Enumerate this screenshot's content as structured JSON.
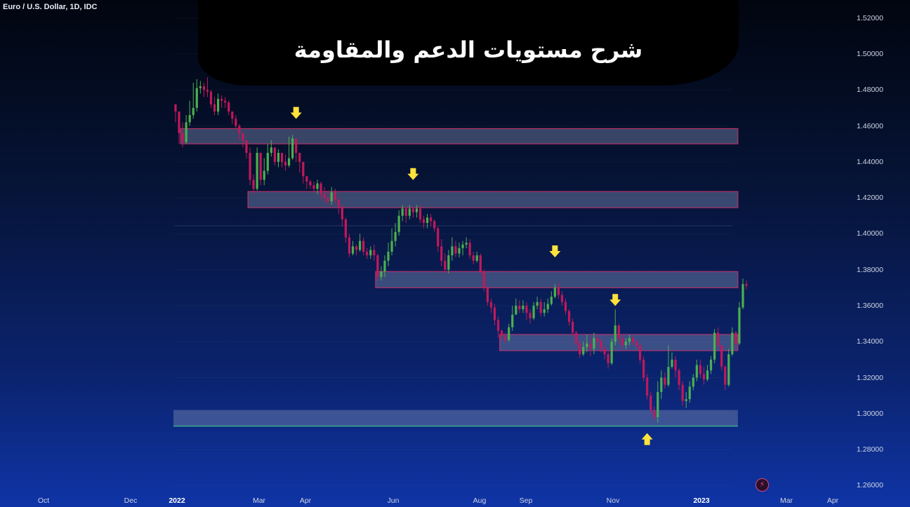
{
  "header": {
    "symbol": "Euro / U.S. Dollar, 1D, IDC"
  },
  "title": "شرح مستويات الدعم والمقاومة",
  "colors": {
    "up": "#4caf50",
    "down": "#c2185b",
    "zone_fill": "rgba(120,135,175,0.45)",
    "zone_border": "#d0306a",
    "arrow": "#ffe23b",
    "support_line": "#3ddc84"
  },
  "chart_data": {
    "type": "candlestick",
    "ylim": [
      1.25,
      1.53
    ],
    "y_ticks": [
      "1.52000",
      "1.50000",
      "1.48000",
      "1.46000",
      "1.44000",
      "1.42000",
      "1.40000",
      "1.38000",
      "1.36000",
      "1.34000",
      "1.32000",
      "1.30000",
      "1.28000",
      "1.26000"
    ],
    "x_ticks": [
      {
        "label": "Oct",
        "year": false
      },
      {
        "label": "Dec",
        "year": false
      },
      {
        "label": "2022",
        "year": true
      },
      {
        "label": "Mar",
        "year": false
      },
      {
        "label": "Apr",
        "year": false
      },
      {
        "label": "Jun",
        "year": false
      },
      {
        "label": "Aug",
        "year": false
      },
      {
        "label": "Sep",
        "year": false
      },
      {
        "label": "Nov",
        "year": false
      },
      {
        "label": "2023",
        "year": true
      },
      {
        "label": "Mar",
        "year": false
      },
      {
        "label": "Apr",
        "year": false
      }
    ],
    "zones": [
      {
        "from_index": 2,
        "to_index": 158,
        "low": 1.45,
        "high": 1.4585,
        "kind": "resistance"
      },
      {
        "from_index": 21,
        "to_index": 158,
        "low": 1.4145,
        "high": 1.4235,
        "kind": "resistance"
      },
      {
        "from_index": 57,
        "to_index": 158,
        "low": 1.37,
        "high": 1.379,
        "kind": "resistance"
      },
      {
        "from_index": 92,
        "to_index": 158,
        "low": 1.335,
        "high": 1.344,
        "kind": "resistance"
      },
      {
        "from_index": 0,
        "to_index": 158,
        "low": 1.293,
        "high": 1.302,
        "kind": "support"
      }
    ],
    "arrows": [
      {
        "index": 34,
        "value": 1.467,
        "direction": "down"
      },
      {
        "index": 67,
        "value": 1.433,
        "direction": "down"
      },
      {
        "index": 107,
        "value": 1.39,
        "direction": "down"
      },
      {
        "index": 124,
        "value": 1.363,
        "direction": "down"
      },
      {
        "index": 133,
        "value": 1.286,
        "direction": "up"
      }
    ],
    "closes": [
      1.468,
      1.456,
      1.451,
      1.462,
      1.466,
      1.47,
      1.481,
      1.482,
      1.48,
      1.479,
      1.472,
      1.468,
      1.475,
      1.474,
      1.473,
      1.468,
      1.464,
      1.46,
      1.456,
      1.452,
      1.445,
      1.43,
      1.425,
      1.445,
      1.43,
      1.435,
      1.445,
      1.448,
      1.44,
      1.445,
      1.44,
      1.438,
      1.442,
      1.453,
      1.445,
      1.44,
      1.432,
      1.429,
      1.427,
      1.425,
      1.428,
      1.422,
      1.42,
      1.418,
      1.423,
      1.419,
      1.415,
      1.408,
      1.398,
      1.389,
      1.393,
      1.391,
      1.396,
      1.39,
      1.388,
      1.391,
      1.388,
      1.376,
      1.379,
      1.385,
      1.39,
      1.396,
      1.401,
      1.41,
      1.414,
      1.41,
      1.414,
      1.412,
      1.414,
      1.408,
      1.406,
      1.409,
      1.407,
      1.403,
      1.393,
      1.385,
      1.38,
      1.388,
      1.393,
      1.389,
      1.392,
      1.394,
      1.395,
      1.388,
      1.385,
      1.388,
      1.379,
      1.37,
      1.362,
      1.359,
      1.352,
      1.346,
      1.343,
      1.341,
      1.348,
      1.355,
      1.36,
      1.358,
      1.36,
      1.356,
      1.353,
      1.36,
      1.362,
      1.356,
      1.358,
      1.361,
      1.365,
      1.37,
      1.366,
      1.362,
      1.357,
      1.351,
      1.345,
      1.339,
      1.333,
      1.337,
      1.339,
      1.336,
      1.342,
      1.34,
      1.336,
      1.333,
      1.328,
      1.34,
      1.349,
      1.342,
      1.338,
      1.34,
      1.342,
      1.34,
      1.338,
      1.33,
      1.32,
      1.31,
      1.302,
      1.298,
      1.312,
      1.32,
      1.316,
      1.326,
      1.33,
      1.324,
      1.316,
      1.307,
      1.308,
      1.315,
      1.32,
      1.327,
      1.322,
      1.319,
      1.324,
      1.33,
      1.345,
      1.338,
      1.326,
      1.316,
      1.333,
      1.345,
      1.339,
      1.359,
      1.372,
      1.371
    ],
    "highs": [
      1.47,
      1.462,
      1.462,
      1.466,
      1.474,
      1.484,
      1.486,
      1.485,
      1.484,
      1.487,
      1.48,
      1.476,
      1.478,
      1.477,
      1.476,
      1.474,
      1.468,
      1.466,
      1.461,
      1.456,
      1.452,
      1.448,
      1.433,
      1.448,
      1.444,
      1.442,
      1.45,
      1.452,
      1.448,
      1.447,
      1.445,
      1.444,
      1.454,
      1.455,
      1.45,
      1.445,
      1.439,
      1.432,
      1.43,
      1.429,
      1.43,
      1.429,
      1.426,
      1.424,
      1.426,
      1.425,
      1.42,
      1.416,
      1.409,
      1.4,
      1.396,
      1.394,
      1.4,
      1.398,
      1.392,
      1.393,
      1.394,
      1.389,
      1.382,
      1.388,
      1.395,
      1.403,
      1.406,
      1.413,
      1.416,
      1.415,
      1.416,
      1.415,
      1.416,
      1.416,
      1.41,
      1.411,
      1.411,
      1.408,
      1.404,
      1.397,
      1.389,
      1.391,
      1.398,
      1.396,
      1.395,
      1.396,
      1.398,
      1.397,
      1.39,
      1.39,
      1.389,
      1.38,
      1.371,
      1.364,
      1.361,
      1.354,
      1.347,
      1.345,
      1.35,
      1.36,
      1.364,
      1.363,
      1.363,
      1.362,
      1.358,
      1.362,
      1.365,
      1.364,
      1.362,
      1.364,
      1.368,
      1.372,
      1.373,
      1.368,
      1.364,
      1.358,
      1.353,
      1.346,
      1.341,
      1.34,
      1.344,
      1.343,
      1.345,
      1.344,
      1.342,
      1.337,
      1.335,
      1.342,
      1.358,
      1.35,
      1.344,
      1.342,
      1.344,
      1.343,
      1.341,
      1.339,
      1.332,
      1.322,
      1.312,
      1.304,
      1.318,
      1.324,
      1.323,
      1.338,
      1.334,
      1.332,
      1.325,
      1.318,
      1.312,
      1.318,
      1.322,
      1.33,
      1.33,
      1.326,
      1.327,
      1.332,
      1.347,
      1.348,
      1.338,
      1.327,
      1.336,
      1.348,
      1.346,
      1.362,
      1.375,
      1.374
    ],
    "lows": [
      1.462,
      1.45,
      1.448,
      1.45,
      1.46,
      1.464,
      1.468,
      1.478,
      1.476,
      1.476,
      1.47,
      1.466,
      1.466,
      1.47,
      1.47,
      1.466,
      1.461,
      1.458,
      1.452,
      1.448,
      1.442,
      1.427,
      1.422,
      1.424,
      1.427,
      1.427,
      1.433,
      1.443,
      1.438,
      1.437,
      1.437,
      1.435,
      1.437,
      1.441,
      1.44,
      1.434,
      1.428,
      1.425,
      1.425,
      1.423,
      1.422,
      1.419,
      1.417,
      1.416,
      1.416,
      1.417,
      1.411,
      1.404,
      1.395,
      1.387,
      1.388,
      1.388,
      1.39,
      1.388,
      1.386,
      1.386,
      1.385,
      1.374,
      1.374,
      1.376,
      1.382,
      1.388,
      1.393,
      1.399,
      1.407,
      1.406,
      1.408,
      1.409,
      1.409,
      1.406,
      1.403,
      1.403,
      1.404,
      1.401,
      1.39,
      1.382,
      1.378,
      1.378,
      1.385,
      1.387,
      1.387,
      1.388,
      1.392,
      1.386,
      1.383,
      1.384,
      1.377,
      1.368,
      1.36,
      1.356,
      1.349,
      1.342,
      1.34,
      1.339,
      1.34,
      1.346,
      1.356,
      1.356,
      1.356,
      1.352,
      1.35,
      1.352,
      1.358,
      1.354,
      1.354,
      1.356,
      1.36,
      1.364,
      1.364,
      1.36,
      1.355,
      1.349,
      1.343,
      1.337,
      1.331,
      1.332,
      1.334,
      1.332,
      1.333,
      1.337,
      1.334,
      1.33,
      1.325,
      1.327,
      1.338,
      1.339,
      1.336,
      1.336,
      1.338,
      1.338,
      1.336,
      1.328,
      1.318,
      1.308,
      1.3,
      1.296,
      1.295,
      1.308,
      1.314,
      1.315,
      1.325,
      1.32,
      1.313,
      1.304,
      1.303,
      1.306,
      1.313,
      1.318,
      1.32,
      1.316,
      1.318,
      1.322,
      1.328,
      1.336,
      1.324,
      1.313,
      1.315,
      1.332,
      1.336,
      1.338,
      1.358,
      1.369
    ]
  }
}
